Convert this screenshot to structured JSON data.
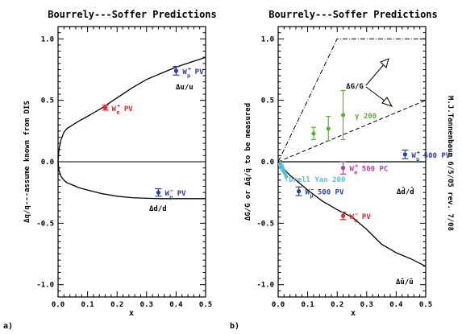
{
  "chart_data": [
    {
      "panel_label": "a)",
      "type": "line",
      "title": "Bourrely---Soffer Predictions",
      "xlabel": "x",
      "ylabel": "Δq/q---assume known from DIS",
      "xlim": [
        0.0,
        0.5
      ],
      "ylim": [
        -1.1,
        1.1
      ],
      "xticks": [
        "0.0",
        "0.1",
        "0.2",
        "0.3",
        "0.4",
        "0.5"
      ],
      "yticks": [
        "-1.0",
        "-0.5",
        "0.0",
        "0.5",
        "1.0"
      ],
      "series": [
        {
          "name": "Δu/u",
          "color": "#000000",
          "x": [
            0.0,
            0.003,
            0.01,
            0.02,
            0.03,
            0.05,
            0.07,
            0.1,
            0.15,
            0.2,
            0.25,
            0.3,
            0.35,
            0.4,
            0.45,
            0.5
          ],
          "y": [
            0.0,
            0.1,
            0.18,
            0.24,
            0.27,
            0.3,
            0.33,
            0.37,
            0.44,
            0.52,
            0.6,
            0.67,
            0.72,
            0.77,
            0.81,
            0.85
          ]
        },
        {
          "name": "Δd/d",
          "color": "#000000",
          "x": [
            0.0,
            0.003,
            0.01,
            0.02,
            0.03,
            0.05,
            0.07,
            0.1,
            0.15,
            0.2,
            0.25,
            0.3,
            0.35,
            0.4,
            0.45,
            0.5
          ],
          "y": [
            0.0,
            -0.07,
            -0.12,
            -0.15,
            -0.17,
            -0.19,
            -0.21,
            -0.23,
            -0.26,
            -0.28,
            -0.292,
            -0.297,
            -0.3,
            -0.3,
            -0.3,
            -0.3
          ]
        }
      ],
      "points": [
        {
          "label": "W",
          "sub": "e",
          "sup": "+",
          "suffix": " PV",
          "x": 0.16,
          "y": 0.44,
          "err": 0.02,
          "color": "#e8262a"
        },
        {
          "label": "W",
          "sub": "μ",
          "sup": "+",
          "suffix": " PV",
          "x": 0.4,
          "y": 0.74,
          "err": 0.035,
          "color": "#2e3f9e"
        },
        {
          "label": "W",
          "sub": "μ",
          "sup": "−",
          "suffix": " PV",
          "x": 0.34,
          "y": -0.25,
          "err": 0.03,
          "color": "#2e3f9e"
        }
      ]
    },
    {
      "panel_label": "b)",
      "type": "line",
      "title": "Bourrely---Soffer Predictions",
      "xlabel": "x",
      "ylabel": "ΔG/G  or  Δq̄/q̄  to be measured",
      "side_note": "M.J.Tannenbaum 6/5/05 rev. 7/08",
      "xlim": [
        0.0,
        0.5
      ],
      "ylim": [
        -1.1,
        1.1
      ],
      "xticks": [
        "0.0",
        "0.1",
        "0.2",
        "0.3",
        "0.4",
        "0.5"
      ],
      "yticks": [
        "-1.0",
        "-0.5",
        "0.0",
        "0.5",
        "1.0"
      ],
      "series": [
        {
          "name": "Δd̄/d̄",
          "color": "#000000",
          "x": [
            0.0,
            0.5
          ],
          "y": [
            0.0,
            0.0
          ]
        },
        {
          "name": "Δū/ū",
          "color": "#000000",
          "x": [
            0.0,
            0.01,
            0.02,
            0.04,
            0.06,
            0.08,
            0.1,
            0.15,
            0.2,
            0.25,
            0.3,
            0.35,
            0.4,
            0.45,
            0.5
          ],
          "y": [
            0.0,
            -0.03,
            -0.06,
            -0.11,
            -0.15,
            -0.19,
            -0.23,
            -0.32,
            -0.39,
            -0.45,
            -0.55,
            -0.67,
            -0.74,
            -0.79,
            -0.85
          ]
        }
      ],
      "gluon_band": {
        "name": "ΔG/G",
        "upper": {
          "x": [
            0.0,
            0.2,
            0.5
          ],
          "y": [
            0.0,
            1.0,
            1.0
          ]
        },
        "lower": {
          "x": [
            0.0,
            0.5
          ],
          "y": [
            0.0,
            0.5
          ]
        }
      },
      "points": [
        {
          "label": "W",
          "sub": "μ",
          "sup": "+",
          "suffix": " 500 PV",
          "x": 0.43,
          "y": 0.06,
          "err": 0.035,
          "color": "#2e3f9e"
        },
        {
          "label": "W",
          "sub": "e",
          "sup": "+",
          "suffix": " 500 PC",
          "x": 0.22,
          "y": -0.05,
          "err": 0.05,
          "color": "#b43da0"
        },
        {
          "label": "W",
          "sub": "μ",
          "sup": "−",
          "suffix": " 500 PV",
          "x": 0.07,
          "y": -0.24,
          "err": 0.035,
          "color": "#2e3f9e"
        },
        {
          "label": "W",
          "sub": "e",
          "sup": "−",
          "suffix": " PV",
          "x": 0.22,
          "y": -0.44,
          "err": 0.03,
          "color": "#e8262a"
        }
      ],
      "gamma_200": {
        "label": "γ 200",
        "color": "#5cb035",
        "x": [
          0.12,
          0.17,
          0.22
        ],
        "y": [
          0.23,
          0.27,
          0.38
        ],
        "err": [
          0.05,
          0.1,
          0.2
        ]
      },
      "drell_yan_200": {
        "label": "Drell Yan 200",
        "color": "#52c1d6",
        "x": [
          0.005,
          0.008,
          0.011,
          0.014,
          0.017,
          0.02,
          0.024,
          0.028
        ],
        "y": [
          -0.02,
          -0.03,
          -0.04,
          -0.05,
          -0.06,
          -0.08,
          -0.1,
          -0.12
        ],
        "err": [
          0.04,
          0.04,
          0.04,
          0.04,
          0.04,
          0.04,
          0.04,
          0.04
        ]
      }
    }
  ]
}
